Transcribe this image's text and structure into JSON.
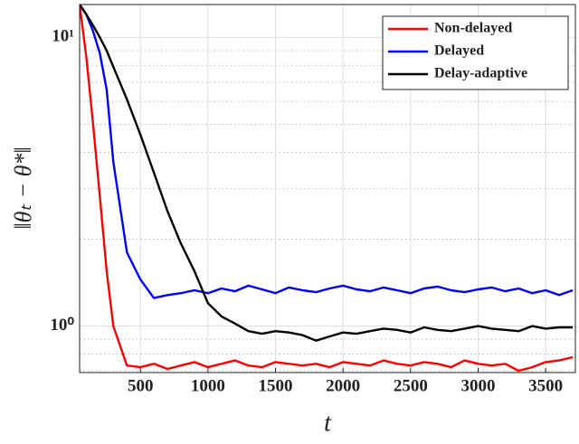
{
  "chart_data": {
    "type": "line",
    "x_label": "t",
    "y_label": "‖θₜ − θ*‖",
    "x": [
      50,
      100,
      150,
      200,
      250,
      300,
      400,
      500,
      600,
      700,
      800,
      900,
      1000,
      1100,
      1200,
      1300,
      1400,
      1500,
      1600,
      1700,
      1800,
      1900,
      2000,
      2100,
      2200,
      2300,
      2400,
      2500,
      2600,
      2700,
      2800,
      2900,
      3000,
      3100,
      3200,
      3300,
      3400,
      3500,
      3600,
      3700
    ],
    "series": [
      {
        "name": "Non-delayed",
        "color": "#ff0000",
        "values": [
          13,
          8.5,
          5,
          2.8,
          1.55,
          1.0,
          0.73,
          0.72,
          0.74,
          0.71,
          0.73,
          0.75,
          0.72,
          0.74,
          0.76,
          0.73,
          0.72,
          0.75,
          0.74,
          0.73,
          0.74,
          0.72,
          0.75,
          0.74,
          0.73,
          0.76,
          0.74,
          0.73,
          0.75,
          0.74,
          0.72,
          0.76,
          0.74,
          0.73,
          0.74,
          0.7,
          0.72,
          0.75,
          0.76,
          0.78
        ]
      },
      {
        "name": "Delayed",
        "color": "#0000ff",
        "values": [
          13,
          12,
          10.5,
          8.8,
          6.6,
          3.7,
          1.8,
          1.45,
          1.25,
          1.28,
          1.3,
          1.33,
          1.3,
          1.35,
          1.32,
          1.38,
          1.34,
          1.3,
          1.36,
          1.33,
          1.31,
          1.35,
          1.38,
          1.34,
          1.32,
          1.36,
          1.33,
          1.3,
          1.35,
          1.37,
          1.33,
          1.31,
          1.34,
          1.36,
          1.32,
          1.35,
          1.3,
          1.33,
          1.28,
          1.33
        ]
      },
      {
        "name": "Delay-adaptive",
        "color": "#000000",
        "values": [
          13,
          12,
          11,
          10,
          9,
          7.9,
          6.1,
          4.6,
          3.4,
          2.5,
          1.93,
          1.55,
          1.2,
          1.08,
          1.02,
          0.96,
          0.94,
          0.96,
          0.95,
          0.93,
          0.89,
          0.92,
          0.95,
          0.94,
          0.96,
          0.98,
          0.97,
          0.95,
          0.99,
          0.97,
          0.96,
          0.98,
          1.0,
          0.98,
          0.97,
          0.96,
          1.0,
          0.98,
          0.99,
          0.99
        ]
      }
    ],
    "xlim": [
      50,
      3720
    ],
    "xticks": [
      500,
      1000,
      1500,
      2000,
      2500,
      3000,
      3500
    ],
    "ylim": [
      0.69,
      13
    ],
    "log_y": true,
    "yticks": [
      {
        "value": 1,
        "label": "10⁰"
      },
      {
        "value": 10,
        "label": "10¹"
      }
    ],
    "yminorticks": [
      0.7,
      0.8,
      0.9,
      2,
      3,
      4,
      5,
      6,
      7,
      8,
      9
    ],
    "grid": true,
    "legend": "upper right"
  }
}
